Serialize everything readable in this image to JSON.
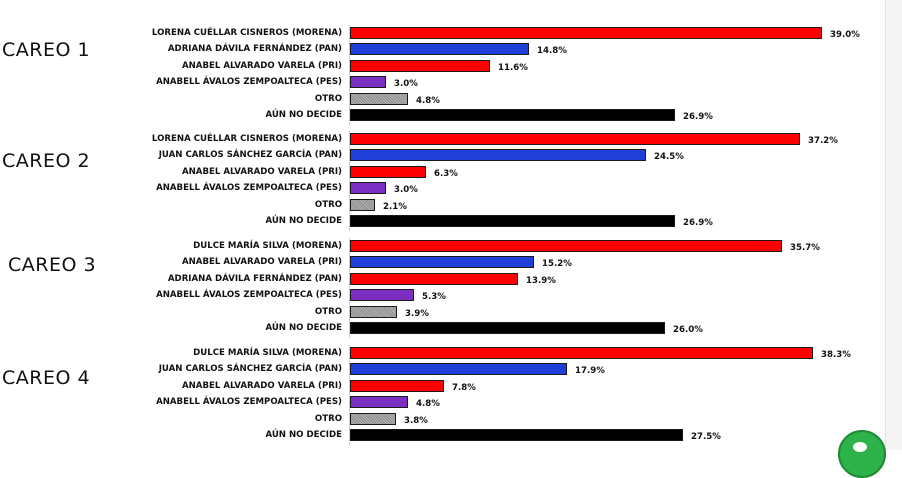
{
  "chart_data": [
    {
      "type": "bar",
      "title": "CAREO 1",
      "categories": [
        "LORENA CUÉLLAR CISNEROS (MORENA)",
        "ADRIANA DÁVILA FERNÁNDEZ (PAN)",
        "ANABEL ALVARADO VARELA   (PRI)",
        "ANABELL ÁVALOS ZEMPOALTECA (PES)",
        "OTRO",
        "AÚN NO DECIDE"
      ],
      "values": [
        39.0,
        14.8,
        11.6,
        3.0,
        4.8,
        26.9
      ],
      "value_labels": [
        "39.0%",
        "14.8%",
        "11.6%",
        "3.0%",
        "4.8%",
        "26.9%"
      ],
      "colors": [
        "#ff0000",
        "#1f3fd8",
        "#ff0000",
        "#7a2fc2",
        "gray",
        "#000000"
      ]
    },
    {
      "type": "bar",
      "title": "CAREO 2",
      "categories": [
        "LORENA CUÉLLAR CISNEROS (MORENA)",
        "JUAN CARLOS SÁNCHEZ GARCÍA (PAN)",
        "ANABEL ALVARADO VARELA (PRI)",
        "ANABELL ÁVALOS ZEMPOALTECA (PES)",
        "OTRO",
        "AÚN NO DECIDE"
      ],
      "values": [
        37.2,
        24.5,
        6.3,
        3.0,
        2.1,
        26.9
      ],
      "value_labels": [
        "37.2%",
        "24.5%",
        "6.3%",
        "3.0%",
        "2.1%",
        "26.9%"
      ],
      "colors": [
        "#ff0000",
        "#1f3fd8",
        "#ff0000",
        "#7a2fc2",
        "gray",
        "#000000"
      ]
    },
    {
      "type": "bar",
      "title": "CAREO 3",
      "categories": [
        "DULCE MARÍA SILVA (MORENA)",
        "ANABEL ALVARADO VARELA (PRI)",
        "ADRIANA DÁVILA FERNÁNDEZ (PAN)",
        "ANABELL ÁVALOS ZEMPOALTECA (PES)",
        "OTRO",
        "AÚN NO DECIDE"
      ],
      "values": [
        35.7,
        15.2,
        13.9,
        5.3,
        3.9,
        26.0
      ],
      "value_labels": [
        "35.7%",
        "15.2%",
        "13.9%",
        "5.3%",
        "3.9%",
        "26.0%"
      ],
      "colors": [
        "#ff0000",
        "#1f3fd8",
        "#ff0000",
        "#7a2fc2",
        "gray",
        "#000000"
      ]
    },
    {
      "type": "bar",
      "title": "CAREO 4",
      "categories": [
        "DULCE MARÍA SILVA (MORENA)",
        "JUAN CARLOS SÁNCHEZ GARCÍA (PAN)",
        "ANABEL ALVARADO VARELA (PRI)",
        "ANABELL ÁVALOS ZEMPOALTECA (PES)",
        "OTRO",
        "AÚN NO DECIDE"
      ],
      "values": [
        38.3,
        17.9,
        7.8,
        4.8,
        3.8,
        27.5
      ],
      "value_labels": [
        "38.3%",
        "17.9%",
        "7.8%",
        "4.8%",
        "3.8%",
        "27.5%"
      ],
      "colors": [
        "#ff0000",
        "#1f3fd8",
        "#ff0000",
        "#7a2fc2",
        "gray",
        "#000000"
      ]
    }
  ]
}
